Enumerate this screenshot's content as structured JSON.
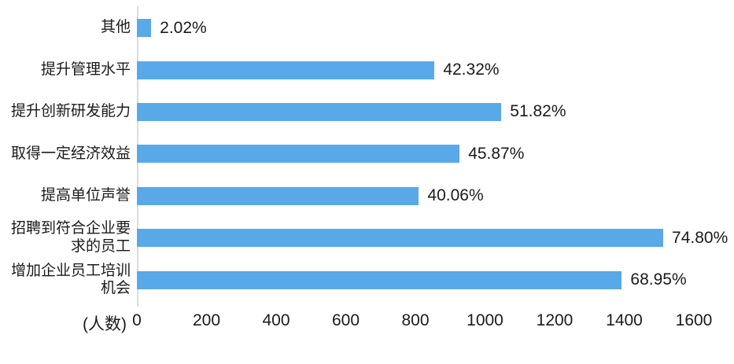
{
  "chart_data": {
    "type": "bar",
    "orientation": "horizontal",
    "title": "",
    "xlabel": "(人数)",
    "ylabel": "",
    "xlim": [
      0,
      1600
    ],
    "x_ticks": [
      0,
      200,
      400,
      600,
      800,
      1000,
      1200,
      1400,
      1600
    ],
    "grid": false,
    "legend": null,
    "bar_color": "#59a9e8",
    "axis_line_color": "#dcdcdc",
    "text_color": "#1a1a1a",
    "categories": [
      "其他",
      "提升管理水平",
      "提升创新研发能力",
      "取得一定经济效益",
      "提高单位声誉",
      "招聘到符合企业要求的员工",
      "增加企业员工培训机会"
    ],
    "category_display": [
      "其他",
      "提升管理水平",
      "提升创新研发能力",
      "取得一定经济效益",
      "提高单位声誉",
      "招聘到符合企业要\n求的员工",
      "增加企业员工培训\n机会"
    ],
    "labels_percent": [
      "2.02%",
      "42.32%",
      "51.82%",
      "45.87%",
      "40.06%",
      "74.80%",
      "68.95%"
    ],
    "values_percent": [
      2.02,
      42.32,
      51.82,
      45.87,
      40.06,
      74.8,
      68.95
    ],
    "values_count_estimated_from_axis": [
      41,
      855,
      1047,
      927,
      810,
      1512,
      1393
    ]
  }
}
